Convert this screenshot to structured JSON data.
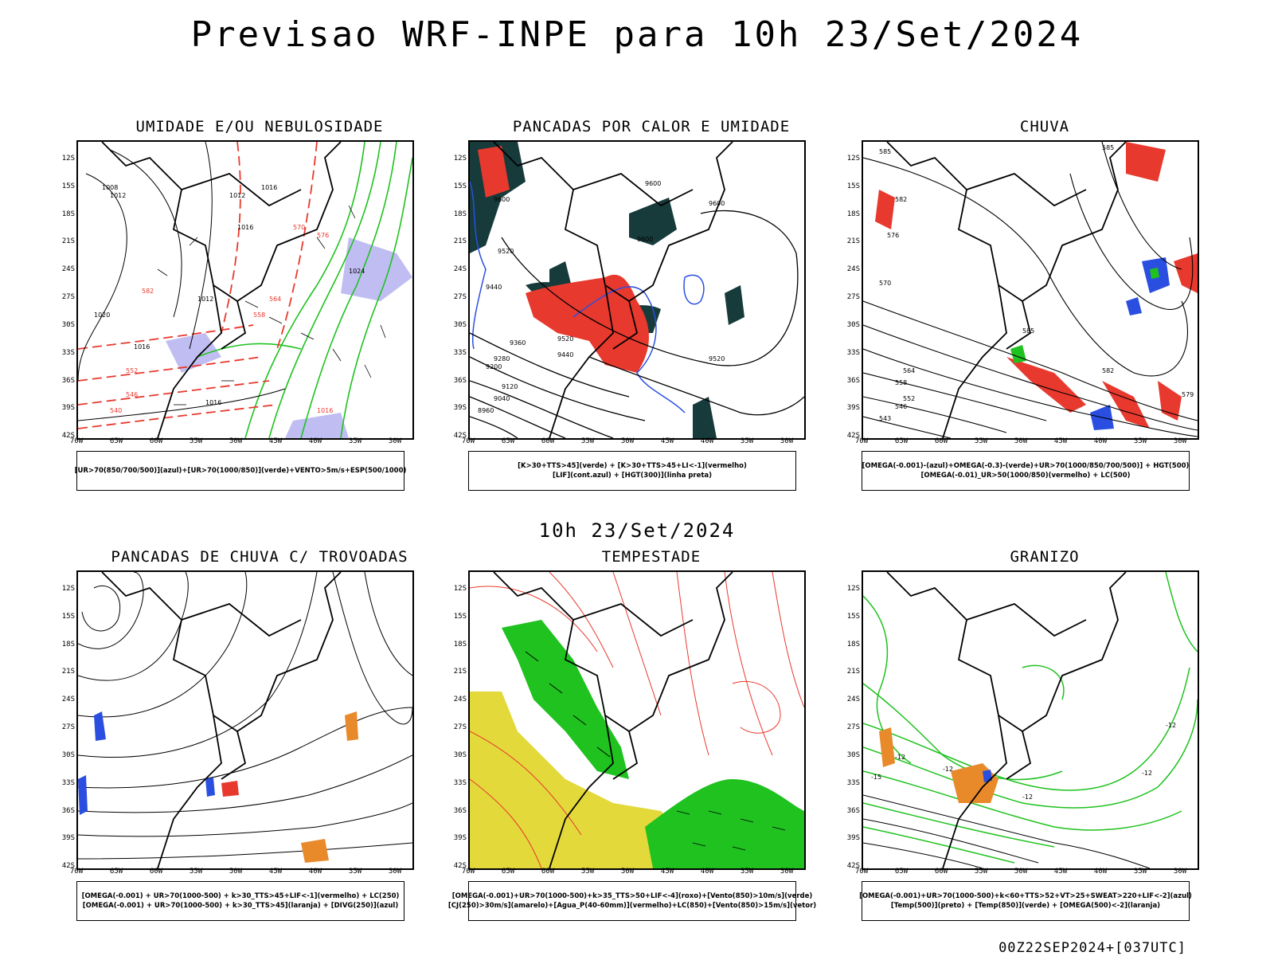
{
  "title": "Previsao WRF-INPE  para 10h 23/Set/2024",
  "subtitle": "10h 23/Set/2024",
  "footer": "00Z22SEP2024+[037UTC]",
  "axes": {
    "lat_labels": [
      "12S",
      "15S",
      "18S",
      "21S",
      "24S",
      "27S",
      "30S",
      "33S",
      "36S",
      "39S",
      "42S"
    ],
    "lon_labels": [
      "70W",
      "65W",
      "60W",
      "55W",
      "50W",
      "45W",
      "40W",
      "35W",
      "30W"
    ]
  },
  "panels": [
    {
      "title": "UMIDADE E/OU NEBULOSIDADE",
      "legend": [
        "[UR>70(850/700/500)](azul)+[UR>70(1000/850)](verde)+VENTO>5m/s+ESP(500/1000)"
      ],
      "contour_labels": [
        "1008",
        "1012",
        "1012",
        "1016",
        "1016",
        "1020",
        "1024",
        "1012",
        "1016",
        "1016",
        "1016",
        "576",
        "570",
        "564",
        "558",
        "552",
        "546",
        "540",
        "582"
      ]
    },
    {
      "title": "PANCADAS POR CALOR E UMIDADE",
      "legend": [
        "[K>30+TTS>45](verde) + [K>30+TTS>45+LI<-1](vermelho)",
        "[LIF](cont.azul) + [HGT(300)](linha preta)"
      ],
      "contour_labels": [
        "9600",
        "9600",
        "9600",
        "9520",
        "9440",
        "9360",
        "9280",
        "9200",
        "9120",
        "9040",
        "8960",
        "9520",
        "9440",
        "9520",
        "9600"
      ]
    },
    {
      "title": "CHUVA",
      "legend": [
        "[OMEGA(-0.001)-(azul)+OMEGA(-0.3)-(verde)+UR>70(1000/850/700/500)] + HGT(500)",
        "[OMEGA(-0.01)_UR>50(1000/850)(vermelho) + LC(500)"
      ],
      "contour_labels": [
        "585",
        "585",
        "582",
        "576",
        "570",
        "564",
        "558",
        "552",
        "546",
        "543",
        "582",
        "579",
        "585"
      ]
    },
    {
      "title": "PANCADAS DE CHUVA C/ TROVOADAS",
      "legend": [
        "[OMEGA(-0.001) + UR>70(1000-500) + k>30_TTS>45+LIF<-1](vermelho) + LC(250)",
        "[OMEGA(-0.001) + UR>70(1000-500) + k>30_TTS>45](laranja) + [DIVG(250)](azul)"
      ],
      "contour_labels": []
    },
    {
      "title": "TEMPESTADE",
      "legend": [
        "[OMEGA(-0.001)+UR>70(1000-500)+k>35_TTS>50+LIF<-4](roxo)+[Vento(850)>10m/s](verde)",
        "[CJ(250)>30m/s](amarelo)+[Agua_P(40-60mm)](vermelho)+LC(850)+[Vento(850)>15m/s](vetor)"
      ],
      "contour_labels": []
    },
    {
      "title": "GRANIZO",
      "legend": [
        "[OMEGA(-0.001)+UR>70(1000-500)+k<60+TTS>52+VT>25+SWEAT>220+LIF<-2](azul)",
        "[Temp(500)](preto) + [Temp(850)](verde) + [OMEGA(500)<-2](laranja)"
      ],
      "contour_labels": [
        "-12",
        "-12",
        "-15",
        "-12",
        "-12",
        "-12"
      ]
    }
  ],
  "colors": {
    "red": "#e8392e",
    "green": "#1fc21f",
    "blue": "#2a4fe0",
    "darkteal": "#173b3b",
    "yellow": "#e3d93a",
    "orange": "#e8892a",
    "lavender": "#b0acef",
    "black": "#000000"
  }
}
